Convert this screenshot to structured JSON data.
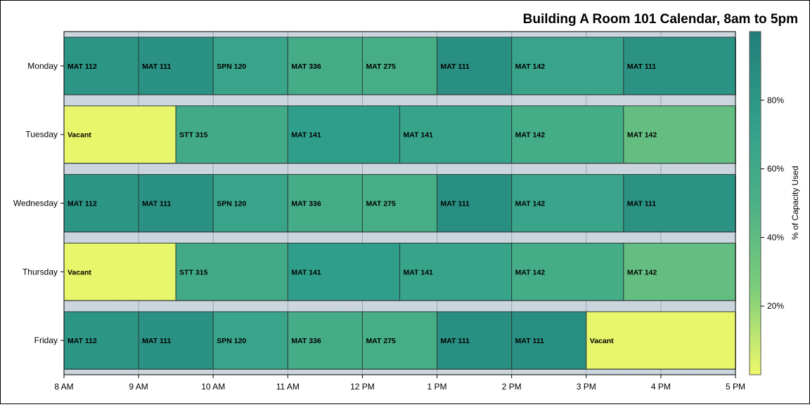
{
  "chart_data": {
    "type": "heatmap",
    "title": "Building A Room 101 Calendar, 8am to 5pm",
    "x_ticks": [
      "8 AM",
      "9 AM",
      "10 AM",
      "11 AM",
      "12 PM",
      "1 PM",
      "2 PM",
      "3 PM",
      "4 PM",
      "5 PM"
    ],
    "xlim": [
      8,
      17
    ],
    "days": [
      "Monday",
      "Tuesday",
      "Wednesday",
      "Thursday",
      "Friday"
    ],
    "colorbar": {
      "label": "% of Capacity Used",
      "ticks": [
        "20%",
        "40%",
        "60%",
        "80%"
      ],
      "tick_values": [
        20,
        40,
        60,
        80
      ],
      "range": [
        0,
        100
      ],
      "colors": [
        "#f0f96a",
        "#7dce7a",
        "#4cb087",
        "#2f9e8a",
        "#237d7a"
      ]
    },
    "schedule": [
      {
        "day": "Monday",
        "blocks": [
          {
            "label": "MAT 112",
            "start": 8,
            "end": 9,
            "pct": 82
          },
          {
            "label": "MAT 111",
            "start": 9,
            "end": 10,
            "pct": 85
          },
          {
            "label": "SPN 120",
            "start": 10,
            "end": 11,
            "pct": 66
          },
          {
            "label": "MAT 336",
            "start": 11,
            "end": 12,
            "pct": 55
          },
          {
            "label": "MAT 275",
            "start": 12,
            "end": 13,
            "pct": 54
          },
          {
            "label": "MAT 111",
            "start": 13,
            "end": 14,
            "pct": 86
          },
          {
            "label": "MAT 142",
            "start": 14,
            "end": 15.5,
            "pct": 66
          },
          {
            "label": "MAT 111",
            "start": 15.5,
            "end": 17,
            "pct": 84
          }
        ]
      },
      {
        "day": "Tuesday",
        "blocks": [
          {
            "label": "Vacant",
            "start": 8,
            "end": 9.5,
            "pct": 2
          },
          {
            "label": "STT 315",
            "start": 9.5,
            "end": 11,
            "pct": 58
          },
          {
            "label": "MAT 141",
            "start": 11,
            "end": 12.5,
            "pct": 75
          },
          {
            "label": "MAT 141",
            "start": 12.5,
            "end": 14,
            "pct": 68
          },
          {
            "label": "MAT 142",
            "start": 14,
            "end": 15.5,
            "pct": 56
          },
          {
            "label": "MAT 142",
            "start": 15.5,
            "end": 17,
            "pct": 38
          }
        ]
      },
      {
        "day": "Wednesday",
        "blocks": [
          {
            "label": "MAT 112",
            "start": 8,
            "end": 9,
            "pct": 82
          },
          {
            "label": "MAT 111",
            "start": 9,
            "end": 10,
            "pct": 85
          },
          {
            "label": "SPN 120",
            "start": 10,
            "end": 11,
            "pct": 66
          },
          {
            "label": "MAT 336",
            "start": 11,
            "end": 12,
            "pct": 55
          },
          {
            "label": "MAT 275",
            "start": 12,
            "end": 13,
            "pct": 54
          },
          {
            "label": "MAT 111",
            "start": 13,
            "end": 14,
            "pct": 86
          },
          {
            "label": "MAT 142",
            "start": 14,
            "end": 15.5,
            "pct": 66
          },
          {
            "label": "MAT 111",
            "start": 15.5,
            "end": 17,
            "pct": 84
          }
        ]
      },
      {
        "day": "Thursday",
        "blocks": [
          {
            "label": "Vacant",
            "start": 8,
            "end": 9.5,
            "pct": 2
          },
          {
            "label": "STT 315",
            "start": 9.5,
            "end": 11,
            "pct": 58
          },
          {
            "label": "MAT 141",
            "start": 11,
            "end": 12.5,
            "pct": 75
          },
          {
            "label": "MAT 141",
            "start": 12.5,
            "end": 14,
            "pct": 68
          },
          {
            "label": "MAT 142",
            "start": 14,
            "end": 15.5,
            "pct": 56
          },
          {
            "label": "MAT 142",
            "start": 15.5,
            "end": 17,
            "pct": 38
          }
        ]
      },
      {
        "day": "Friday",
        "blocks": [
          {
            "label": "MAT 112",
            "start": 8,
            "end": 9,
            "pct": 82
          },
          {
            "label": "MAT 111",
            "start": 9,
            "end": 10,
            "pct": 85
          },
          {
            "label": "SPN 120",
            "start": 10,
            "end": 11,
            "pct": 66
          },
          {
            "label": "MAT 336",
            "start": 11,
            "end": 12,
            "pct": 55
          },
          {
            "label": "MAT 275",
            "start": 12,
            "end": 13,
            "pct": 54
          },
          {
            "label": "MAT 111",
            "start": 13,
            "end": 14,
            "pct": 86
          },
          {
            "label": "MAT 111",
            "start": 14,
            "end": 15,
            "pct": 86
          },
          {
            "label": "Vacant",
            "start": 15,
            "end": 17,
            "pct": 2
          }
        ]
      }
    ]
  }
}
